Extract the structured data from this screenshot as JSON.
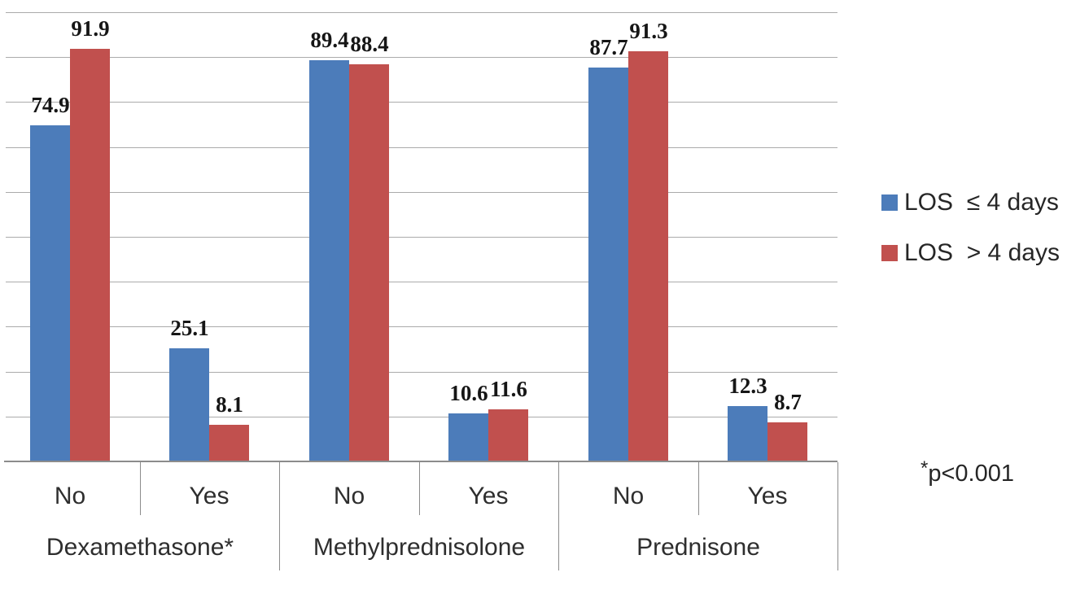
{
  "chart_data": {
    "type": "bar",
    "title": "",
    "xlabel": "",
    "ylabel": "",
    "ylim": [
      0,
      100
    ],
    "grid_step": 10,
    "grid": true,
    "legend_position": "right",
    "groups": [
      {
        "label": "Dexamethasone*",
        "categories": [
          "No",
          "Yes"
        ]
      },
      {
        "label": "Methylprednisolone",
        "categories": [
          "No",
          "Yes"
        ]
      },
      {
        "label": "Prednisone",
        "categories": [
          "No",
          "Yes"
        ]
      }
    ],
    "series": [
      {
        "name": "LOS  ≤ 4 days",
        "color": "#4C7CBA",
        "values": [
          74.9,
          25.1,
          89.4,
          10.6,
          87.7,
          12.3
        ]
      },
      {
        "name": "LOS  > 4 days",
        "color": "#C1504E",
        "values": [
          91.9,
          8.1,
          88.4,
          11.6,
          91.3,
          8.7
        ]
      }
    ],
    "annotation": "*p<0.001"
  },
  "annotation": {
    "star": "*",
    "text": "p<0.001"
  }
}
